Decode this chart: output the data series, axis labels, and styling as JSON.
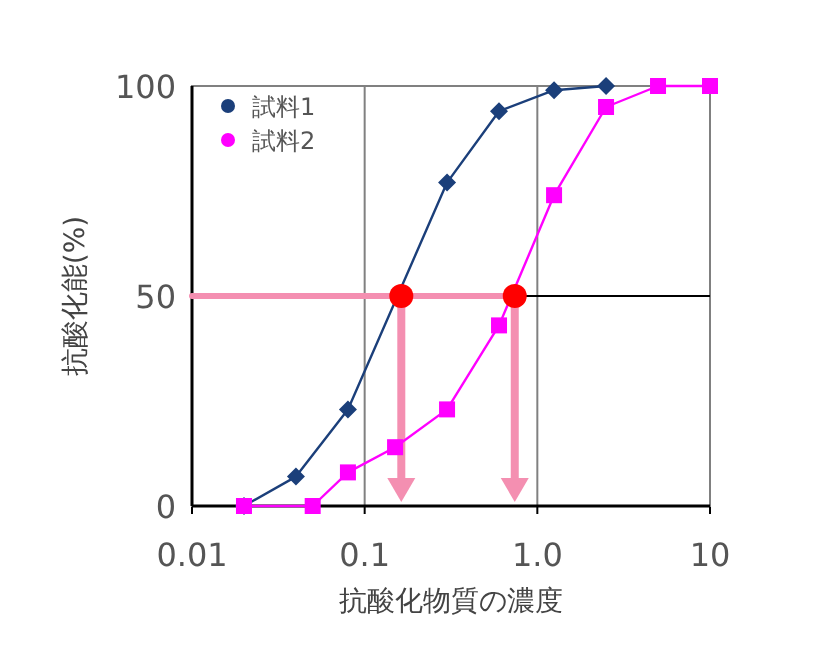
{
  "chart_data": {
    "type": "line",
    "xlabel": "抗酸化物質の濃度",
    "ylabel": "抗酸化能(%)",
    "log": "x",
    "xlim": [
      0.01,
      10
    ],
    "xticks": [
      0.01,
      0.1,
      {
        "value": 1,
        "label": "1.0"
      },
      10
    ],
    "ylim": [
      0,
      100
    ],
    "yticks": [
      0,
      50,
      100
    ],
    "grid": "x",
    "legend": "top left",
    "ref_lines": [
      {
        "axis": "y",
        "value": 50,
        "color": "#000000"
      }
    ],
    "series": [
      {
        "type": "line",
        "color": "#f48fb1",
        "marker": "none",
        "x": [
          0.01,
          0.74
        ],
        "values": [
          50,
          50
        ]
      },
      {
        "name": "試料1",
        "color": "#1b3f7a",
        "marker": "diamond",
        "x": [
          0.02,
          0.04,
          0.08,
          0.3,
          0.6,
          1.25,
          2.5
        ],
        "values": [
          0,
          7,
          23,
          77,
          94,
          99,
          100
        ]
      },
      {
        "name": "試料2",
        "color": "#ff00ff",
        "marker": "square",
        "x": [
          0.02,
          0.05,
          0.08,
          0.15,
          0.3,
          0.6,
          1.25,
          2.5,
          5,
          10
        ],
        "values": [
          0,
          0,
          8,
          14,
          23,
          43,
          74,
          95,
          100,
          100
        ]
      },
      {
        "type": "scatter",
        "color": "#ff0000",
        "marker": "circle",
        "x": [
          0.163,
          0.74
        ],
        "values": [
          50,
          50
        ]
      }
    ]
  }
}
